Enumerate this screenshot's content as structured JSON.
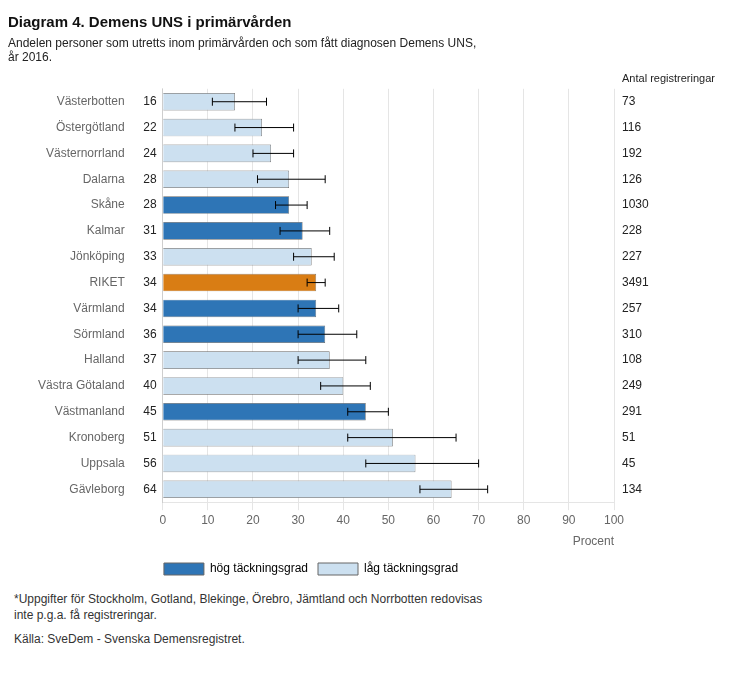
{
  "chart_data": {
    "type": "bar",
    "orientation": "horizontal",
    "title": "Diagram 4. Demens UNS i primärvården",
    "subtitle": "Andelen personer som utretts inom primärvården och som fått diagnosen Demens UNS,\når 2016.",
    "footnotes": [
      "*Uppgifter för Stockholm, Gotland, Blekinge, Örebro, Jämtland och Norrbotten redovisas\ninte p.g.a. få registreringar.",
      "Källa: SveDem - Svenska Demensregistret."
    ],
    "xlabel": "Procent",
    "right_label": "Antal registreringar",
    "categories": [
      "Västerbotten",
      "Östergötland",
      "Västernorrland",
      "Dalarna",
      "Skåne",
      "Kalmar",
      "Jönköping",
      "RIKET",
      "Värmland",
      "Sörmland",
      "Halland",
      "Västra Götaland",
      "Västmanland",
      "Kronoberg",
      "Uppsala",
      "Gävleborg"
    ],
    "values": [
      16,
      22,
      24,
      28,
      28,
      31,
      33,
      34,
      34,
      36,
      37,
      40,
      45,
      51,
      56,
      64
    ],
    "error_upper": [
      7,
      7,
      5,
      8,
      4,
      6,
      5,
      2,
      5,
      7,
      8,
      6,
      5,
      14,
      14,
      8
    ],
    "error_lower": [
      5,
      6,
      4,
      7,
      3,
      5,
      4,
      2,
      4,
      6,
      7,
      5,
      4,
      10,
      11,
      7
    ],
    "registrations": [
      73,
      116,
      192,
      126,
      1030,
      228,
      227,
      3491,
      257,
      310,
      108,
      249,
      291,
      51,
      45,
      134
    ],
    "colors": [
      "#cce0f0",
      "#cce0f0",
      "#cce0f0",
      "#cce0f0",
      "#2e75b6",
      "#2e75b6",
      "#cce0f0",
      "#d97d14",
      "#2e75b6",
      "#2e75b6",
      "#cce0f0",
      "#cce0f0",
      "#2e75b6",
      "#cce0f0",
      "#cce0f0",
      "#cce0f0"
    ],
    "legend": "bottom",
    "legend_entries": [
      {
        "name": "hög täckningsgrad",
        "color": "#2e75b6"
      },
      {
        "name": "låg täckningsgrad",
        "color": "#cce0f0"
      }
    ],
    "xlim": [
      0,
      100
    ],
    "xticks": [
      0,
      10,
      20,
      30,
      40,
      50,
      60,
      70,
      80,
      90,
      100
    ],
    "grid": true,
    "data_labels": true
  }
}
